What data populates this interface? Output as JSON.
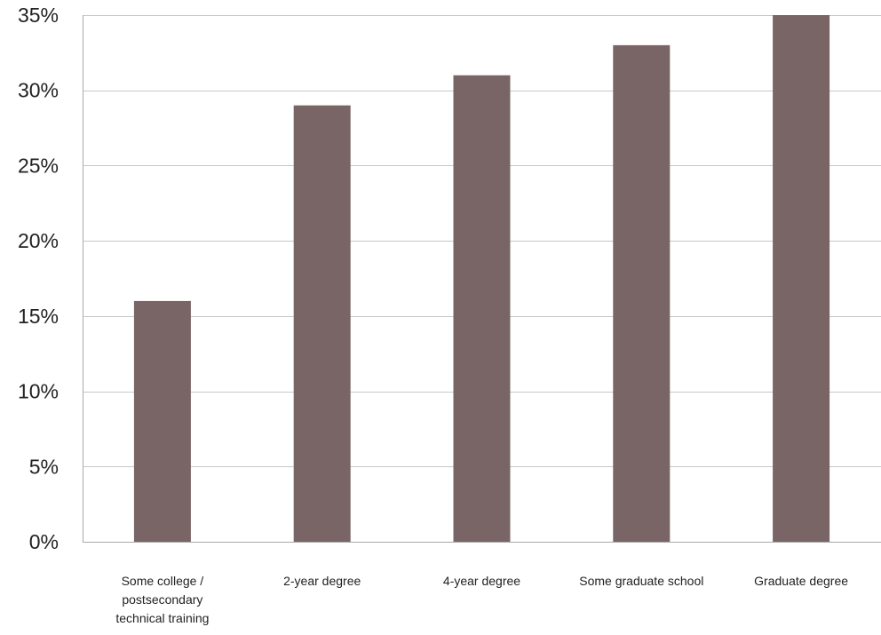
{
  "chart_data": {
    "type": "bar",
    "title": "",
    "xlabel": "",
    "ylabel": "",
    "categories": [
      [
        "Some college /",
        "postsecondary",
        "technical training"
      ],
      [
        "2-year degree"
      ],
      [
        "4-year degree"
      ],
      [
        "Some graduate school"
      ],
      [
        "Graduate degree"
      ]
    ],
    "values": [
      16,
      29,
      31,
      33,
      35
    ],
    "ylim": [
      0,
      35
    ],
    "yticks": [
      0,
      5,
      10,
      15,
      20,
      25,
      30,
      35
    ],
    "ytick_labels": [
      "0%",
      "5%",
      "10%",
      "15%",
      "20%",
      "25%",
      "30%",
      "35%"
    ],
    "grid": true,
    "legend": "none",
    "colors": {
      "bar": "#7a6566",
      "grid": "#c8c8c8",
      "axis": "#aaaaaa",
      "text": "#222222"
    }
  }
}
